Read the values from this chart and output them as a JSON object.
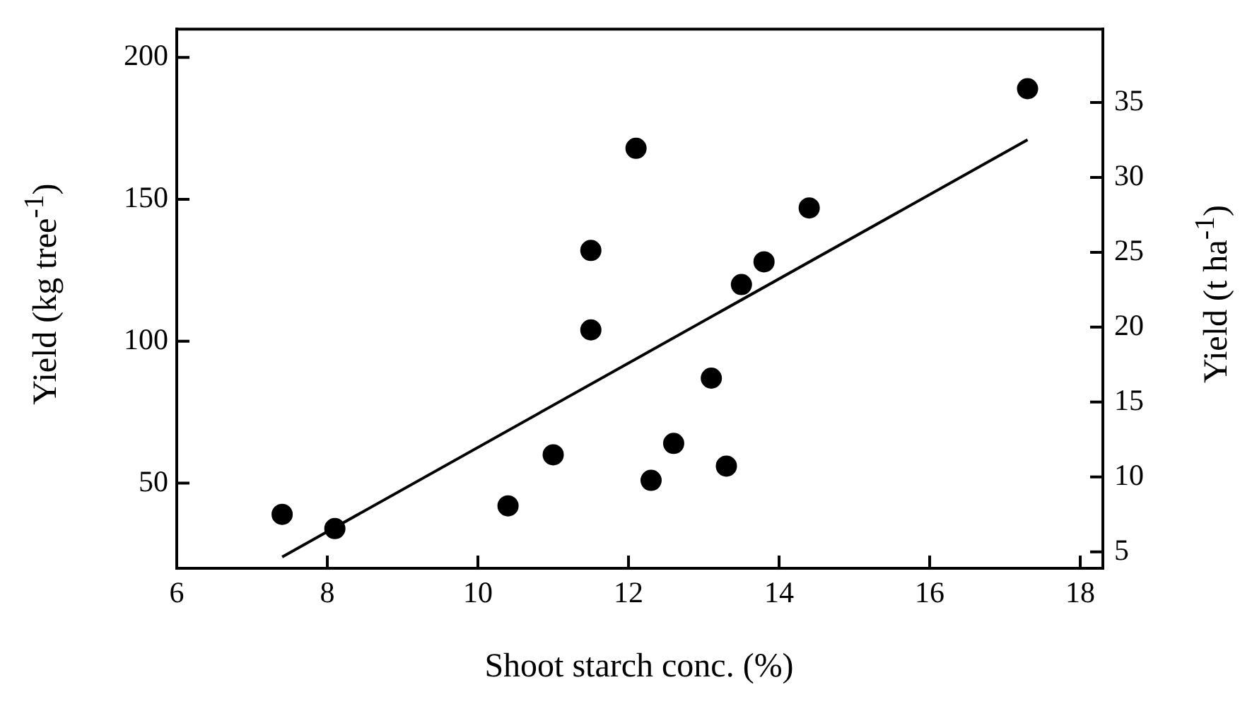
{
  "chart_data": {
    "type": "scatter",
    "xlabel": "Shoot starch conc. (%)",
    "ylabel": "Yield (kg tree$^{-1}$)",
    "y2label": "Yield (t ha$^{-1}$)",
    "xlim": [
      6,
      18.3
    ],
    "xticks": [
      6,
      8,
      10,
      12,
      14,
      16,
      18
    ],
    "ylim": [
      20,
      210
    ],
    "yticks": [
      50,
      100,
      150,
      200
    ],
    "y2lim": [
      3.9,
      39.9
    ],
    "y2ticks": [
      5,
      10,
      15,
      20,
      25,
      30,
      35
    ],
    "grid": false,
    "legend": false,
    "series": [
      {
        "color": "#000000",
        "marker": "circle",
        "x": [
          7.4,
          8.1,
          10.4,
          11.0,
          11.5,
          11.5,
          12.1,
          12.3,
          12.6,
          13.1,
          13.3,
          13.5,
          13.8,
          14.4,
          17.3
        ],
        "values": [
          39,
          34,
          42,
          60,
          132,
          104,
          168,
          51,
          64,
          87,
          56,
          120,
          128,
          147,
          189
        ]
      },
      {
        "type": "line",
        "color": "#000000",
        "marker": "none",
        "line_style": "solid",
        "x": [
          7.4,
          17.3
        ],
        "values": [
          24,
          171
        ]
      }
    ]
  }
}
